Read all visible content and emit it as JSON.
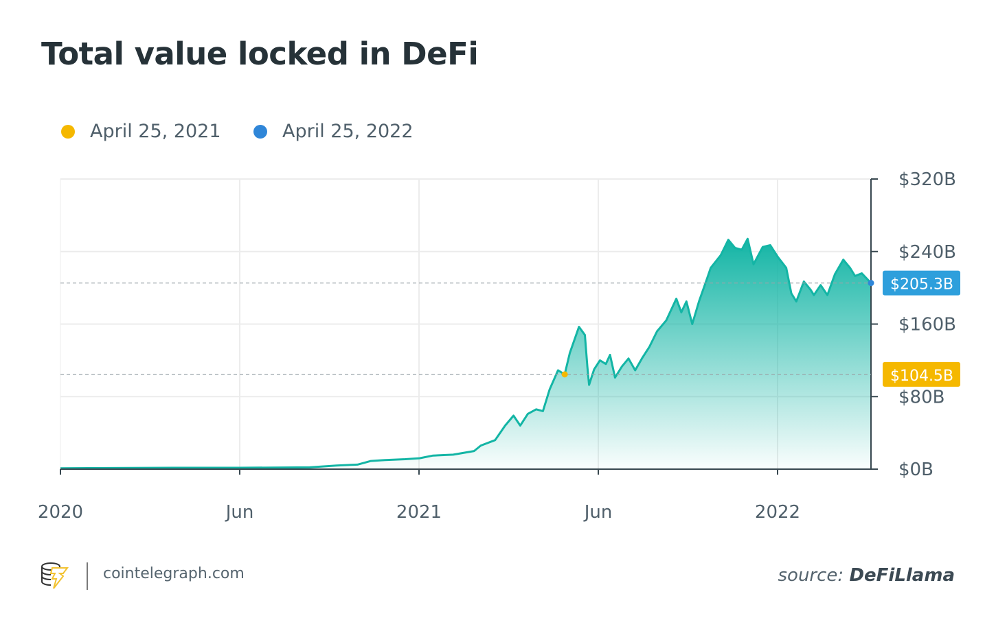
{
  "chart_data": {
    "type": "area",
    "title": "Total value locked in DeFi",
    "xlabel": "",
    "ylabel": "",
    "ylim": [
      0,
      320
    ],
    "y_ticks": [
      0,
      80,
      160,
      240,
      320
    ],
    "y_tick_labels": [
      "$0B",
      "$80B",
      "$160B",
      "$240B",
      "$320B"
    ],
    "x_tick_labels": [
      "2020",
      "Jun",
      "2021",
      "Jun",
      "2022"
    ],
    "grid": true,
    "legend_placement": "top-left",
    "line_color": "#13b5a5",
    "series": [
      {
        "x": [
          "2019-09-02",
          "2020-01-15",
          "2020-04-03",
          "2020-06-25",
          "2020-07-27",
          "2020-08-21",
          "2020-09-06",
          "2020-09-23",
          "2020-10-17",
          "2020-11-03",
          "2020-11-19",
          "2020-12-13",
          "2021-01-07",
          "2021-01-15",
          "2021-02-01",
          "2021-02-13",
          "2021-02-23",
          "2021-03-03",
          "2021-03-12",
          "2021-03-22",
          "2021-03-30",
          "2021-04-07",
          "2021-04-17",
          "2021-04-25",
          "2021-05-01",
          "2021-05-12",
          "2021-05-19",
          "2021-05-22",
          "2021-05-24",
          "2021-05-30",
          "2021-06-06",
          "2021-06-13",
          "2021-06-18",
          "2021-06-24",
          "2021-07-02",
          "2021-07-10",
          "2021-07-18",
          "2021-07-26",
          "2021-08-04",
          "2021-08-13",
          "2021-08-24",
          "2021-09-05",
          "2021-09-11",
          "2021-09-17",
          "2021-09-24",
          "2021-10-02",
          "2021-10-10",
          "2021-10-16",
          "2021-10-28",
          "2021-11-06",
          "2021-11-14",
          "2021-11-22",
          "2021-11-29",
          "2021-12-06",
          "2021-12-17",
          "2021-12-26",
          "2022-01-04",
          "2022-01-14",
          "2022-01-20",
          "2022-01-26",
          "2022-02-04",
          "2022-02-12",
          "2022-02-16",
          "2022-02-24",
          "2022-03-04",
          "2022-03-13",
          "2022-03-23",
          "2022-03-31",
          "2022-04-06",
          "2022-04-14",
          "2022-04-25"
        ],
        "values": [
          1,
          1.5,
          1.5,
          2,
          4,
          5,
          9,
          10,
          11,
          12,
          15,
          16,
          20,
          26,
          32,
          48,
          59,
          48,
          61,
          66,
          64,
          88,
          109,
          104.5,
          128,
          157,
          148,
          113,
          93,
          110,
          120,
          116,
          126,
          101,
          113,
          122,
          109,
          122,
          135,
          152,
          164,
          188,
          173,
          185,
          160,
          185,
          206,
          222,
          236,
          253,
          244,
          242,
          254,
          226,
          245,
          247,
          234,
          222,
          194,
          185,
          207,
          198,
          192,
          203,
          192,
          215,
          231,
          222,
          213,
          216,
          205.3
        ]
      }
    ],
    "markers": [
      {
        "date": "2021-04-25",
        "label": "April 25, 2021",
        "value": 104.5,
        "value_label": "$104.5B",
        "color": "#f5b800"
      },
      {
        "date": "2022-04-25",
        "label": "April 25, 2022",
        "value": 205.3,
        "value_label": "$205.3B",
        "color": "#2f86d8",
        "badge_color": "#2e9fdc"
      }
    ]
  },
  "footer": {
    "site": "cointelegraph.com",
    "source_prefix": "source:",
    "source_name": "DeFiLlama"
  }
}
